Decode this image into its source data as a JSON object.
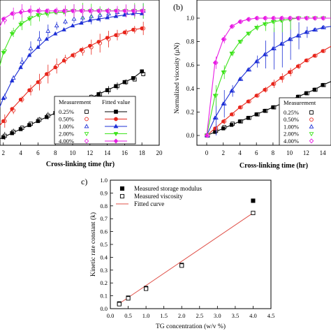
{
  "chart_data": [
    {
      "panel": "a",
      "type": "line",
      "title": "",
      "xlabel": "Cross-linking time (hr)",
      "ylabel": "",
      "xlim": [
        0,
        20
      ],
      "ylim": [
        0,
        1.05
      ],
      "xticks": [
        "2",
        "4",
        "6",
        "8",
        "10",
        "12",
        "14",
        "16",
        "18",
        "20"
      ],
      "legend": {
        "placement": "bottom-right",
        "header_measurement": "Measurement",
        "header_fitted": "Fitted value"
      },
      "series": [
        {
          "name": "0.25%",
          "color": "#000000",
          "measured_marker": "square",
          "fitted_marker": "square",
          "x": [
            0,
            1,
            2,
            3,
            4,
            5,
            6,
            7,
            8,
            9,
            10,
            11,
            12,
            13,
            14,
            15,
            16,
            17,
            18
          ],
          "measured": [
            0.0,
            0.04,
            0.07,
            0.1,
            0.13,
            0.16,
            0.19,
            0.22,
            0.25,
            0.28,
            0.3,
            0.33,
            0.36,
            0.38,
            0.41,
            0.44,
            0.47,
            0.49,
            0.53
          ],
          "fitted": [
            0.0,
            0.03,
            0.06,
            0.09,
            0.12,
            0.15,
            0.18,
            0.21,
            0.24,
            0.27,
            0.3,
            0.33,
            0.35,
            0.38,
            0.41,
            0.44,
            0.47,
            0.5,
            0.55
          ],
          "error": 0.02
        },
        {
          "name": "0.50%",
          "color": "#e8261c",
          "measured_marker": "circle",
          "fitted_marker": "circle",
          "x": [
            0,
            1,
            2,
            3,
            4,
            5,
            6,
            7,
            8,
            9,
            10,
            11,
            12,
            13,
            14,
            15,
            16,
            17,
            18
          ],
          "measured": [
            0.0,
            0.1,
            0.18,
            0.26,
            0.34,
            0.41,
            0.47,
            0.53,
            0.59,
            0.64,
            0.67,
            0.7,
            0.73,
            0.76,
            0.79,
            0.82,
            0.84,
            0.86,
            0.87
          ],
          "fitted": [
            0.0,
            0.1,
            0.18,
            0.27,
            0.34,
            0.41,
            0.47,
            0.53,
            0.58,
            0.63,
            0.67,
            0.71,
            0.74,
            0.77,
            0.8,
            0.82,
            0.84,
            0.86,
            0.87
          ],
          "error": 0.06
        },
        {
          "name": "1.00%",
          "color": "#1d2fd6",
          "measured_marker": "triangle",
          "fitted_marker": "triangle",
          "x": [
            0,
            1,
            2,
            3,
            4,
            5,
            6,
            7,
            8,
            9,
            10,
            11,
            12,
            13,
            14,
            15,
            16,
            17,
            18
          ],
          "measured": [
            0.0,
            0.2,
            0.36,
            0.5,
            0.62,
            0.72,
            0.79,
            0.85,
            0.89,
            0.92,
            0.94,
            0.95,
            0.96,
            0.97,
            0.98,
            0.99,
            0.99,
            1.0,
            1.0
          ],
          "fitted": [
            0.0,
            0.19,
            0.35,
            0.48,
            0.58,
            0.67,
            0.73,
            0.79,
            0.83,
            0.86,
            0.89,
            0.91,
            0.93,
            0.94,
            0.95,
            0.96,
            0.97,
            0.98,
            0.98
          ],
          "error": 0.05
        },
        {
          "name": "2.00%",
          "color": "#3de31b",
          "measured_marker": "triangle-down",
          "fitted_marker": "triangle-down",
          "x": [
            0,
            1,
            2,
            3,
            4,
            5,
            6,
            7,
            8,
            9,
            10,
            11,
            12,
            13,
            14,
            15,
            16,
            17,
            18
          ],
          "measured": [
            0.0,
            0.45,
            0.7,
            0.84,
            0.91,
            0.95,
            0.97,
            0.98,
            0.99,
            1.0,
            1.0,
            1.0,
            1.0,
            1.0,
            1.0,
            1.0,
            1.0,
            1.0,
            1.0
          ],
          "fitted": [
            0.0,
            0.45,
            0.69,
            0.83,
            0.9,
            0.94,
            0.97,
            0.98,
            0.99,
            0.99,
            1.0,
            1.0,
            1.0,
            1.0,
            1.0,
            1.0,
            1.0,
            1.0,
            1.0
          ],
          "error": 0.05
        },
        {
          "name": "4.00%",
          "color": "#e81be3",
          "measured_marker": "diamond",
          "fitted_marker": "diamond",
          "x": [
            0,
            1,
            2,
            3,
            4,
            5,
            6,
            7,
            8,
            9,
            10,
            11,
            12,
            13,
            14,
            15,
            16,
            17,
            18
          ],
          "measured": [
            0.0,
            0.8,
            0.93,
            0.98,
            1.0,
            1.0,
            1.0,
            1.0,
            1.0,
            1.0,
            1.0,
            1.0,
            1.0,
            1.0,
            1.0,
            1.0,
            1.0,
            1.0,
            1.0
          ],
          "fitted": [
            0.0,
            0.8,
            0.94,
            0.98,
            0.99,
            1.0,
            1.0,
            1.0,
            1.0,
            1.0,
            1.0,
            1.0,
            1.0,
            1.0,
            1.0,
            1.0,
            1.0,
            1.0,
            1.0
          ],
          "error": 0.04
        }
      ]
    },
    {
      "panel": "b",
      "type": "line",
      "title": "",
      "xlabel": "Cross-linking time (hr)",
      "ylabel": "Normalized viscosity (μN)",
      "xlim": [
        0,
        15
      ],
      "ylim": [
        0,
        1.05
      ],
      "xticks": [
        "0",
        "2",
        "4",
        "6",
        "8",
        "10",
        "12",
        "14"
      ],
      "yticks": [
        "0.0",
        "0.2",
        "0.4",
        "0.6",
        "0.8",
        "1.0"
      ],
      "legend": {
        "placement": "bottom-right",
        "header": "Measurement"
      },
      "series": [
        {
          "name": "0.25%",
          "color": "#000000",
          "marker": "square",
          "x": [
            0,
            1,
            2,
            3,
            4,
            5,
            6,
            7,
            8,
            9,
            10,
            11,
            12,
            13,
            14,
            15
          ],
          "measured": [
            0.0,
            0.04,
            0.07,
            0.1,
            0.12,
            0.15,
            0.18,
            0.21,
            0.24,
            0.27,
            0.3,
            0.33,
            0.36,
            0.39,
            0.43,
            0.46
          ],
          "fitted": [
            0.0,
            0.03,
            0.06,
            0.09,
            0.12,
            0.15,
            0.18,
            0.21,
            0.24,
            0.27,
            0.3,
            0.33,
            0.36,
            0.39,
            0.43,
            0.46
          ],
          "error": 0.02
        },
        {
          "name": "0.50%",
          "color": "#e8261c",
          "marker": "circle",
          "x": [
            0,
            1,
            2,
            3,
            4,
            5,
            6,
            7,
            8,
            9,
            10,
            11,
            12,
            13,
            14,
            15
          ],
          "measured": [
            0.0,
            0.06,
            0.12,
            0.18,
            0.24,
            0.29,
            0.34,
            0.39,
            0.44,
            0.49,
            0.54,
            0.59,
            0.64,
            0.68,
            0.72,
            0.76
          ],
          "fitted": [
            0.0,
            0.06,
            0.12,
            0.18,
            0.24,
            0.29,
            0.34,
            0.39,
            0.44,
            0.49,
            0.54,
            0.59,
            0.64,
            0.68,
            0.72,
            0.76
          ],
          "error": 0.04
        },
        {
          "name": "1.00%",
          "color": "#1d2fd6",
          "marker": "triangle",
          "x": [
            0,
            1,
            2,
            3,
            4,
            5,
            6,
            7,
            8,
            9,
            10,
            11,
            12,
            13,
            14,
            15
          ],
          "measured": [
            0.0,
            0.15,
            0.27,
            0.38,
            0.48,
            0.56,
            0.63,
            0.69,
            0.74,
            0.78,
            0.82,
            0.85,
            0.88,
            0.9,
            0.92,
            0.93
          ],
          "fitted": [
            0.0,
            0.15,
            0.27,
            0.38,
            0.48,
            0.56,
            0.63,
            0.69,
            0.74,
            0.78,
            0.82,
            0.85,
            0.88,
            0.9,
            0.92,
            0.93
          ],
          "error": 0.2
        },
        {
          "name": "2.00%",
          "color": "#3de31b",
          "marker": "triangle-down",
          "x": [
            0,
            1,
            2,
            3,
            4,
            5,
            6,
            7,
            8,
            9,
            10,
            11,
            12,
            13,
            14,
            15
          ],
          "measured": [
            0.0,
            0.34,
            0.54,
            0.7,
            0.8,
            0.87,
            0.92,
            0.95,
            0.97,
            0.98,
            0.99,
            1.0,
            1.0,
            1.0,
            1.0,
            1.0
          ],
          "fitted": [
            0.0,
            0.34,
            0.54,
            0.7,
            0.8,
            0.87,
            0.92,
            0.95,
            0.97,
            0.98,
            0.99,
            1.0,
            1.0,
            1.0,
            1.0,
            1.0
          ],
          "error": 0.1
        },
        {
          "name": "4.00%",
          "color": "#e81be3",
          "marker": "diamond",
          "x": [
            0,
            1,
            2,
            3,
            4,
            5,
            6,
            7,
            8,
            9,
            10,
            11,
            12,
            13,
            14,
            15
          ],
          "measured": [
            0.0,
            0.62,
            0.82,
            0.93,
            0.97,
            0.99,
            1.0,
            1.0,
            1.0,
            1.0,
            1.0,
            1.0,
            1.0,
            1.0,
            1.0,
            1.0
          ],
          "fitted": [
            0.0,
            0.62,
            0.82,
            0.93,
            0.97,
            0.99,
            1.0,
            1.0,
            1.0,
            1.0,
            1.0,
            1.0,
            1.0,
            1.0,
            1.0,
            1.0
          ],
          "error": 0.06
        }
      ]
    },
    {
      "panel": "c",
      "type": "scatter",
      "title": "",
      "xlabel": "TG concentration (w/v %)",
      "ylabel": "Kinetic rate constant (k)",
      "xlim": [
        0,
        4.5
      ],
      "ylim": [
        0,
        1.0
      ],
      "xticks": [
        "0.0",
        "0.5",
        "1.0",
        "1.5",
        "2.0",
        "2.5",
        "3.0",
        "3.5",
        "4.0",
        "4.5"
      ],
      "yticks": [
        "0.0",
        "0.1",
        "0.2",
        "0.3",
        "0.4",
        "0.5",
        "0.6",
        "0.7",
        "0.8",
        "0.9",
        "1.0"
      ],
      "legend": {
        "placement": "top-left"
      },
      "series": [
        {
          "name": "Measured storage modulus",
          "marker": "filled-square",
          "color": "#000000",
          "x": [
            0.25,
            0.5,
            1.0,
            2.0,
            4.0
          ],
          "y": [
            0.04,
            0.085,
            0.16,
            0.34,
            0.84
          ]
        },
        {
          "name": "Measured viscosity",
          "marker": "open-square",
          "color": "#000000",
          "x": [
            0.25,
            0.5,
            1.0,
            2.0,
            4.0
          ],
          "y": [
            0.035,
            0.08,
            0.155,
            0.335,
            0.745
          ]
        },
        {
          "name": "Fitted curve",
          "marker": "line",
          "color": "#e0524a",
          "x": [
            0.2,
            4.0
          ],
          "y": [
            0.03,
            0.745
          ]
        }
      ]
    }
  ],
  "panel_labels": {
    "b": "(b)",
    "c": "c)"
  }
}
